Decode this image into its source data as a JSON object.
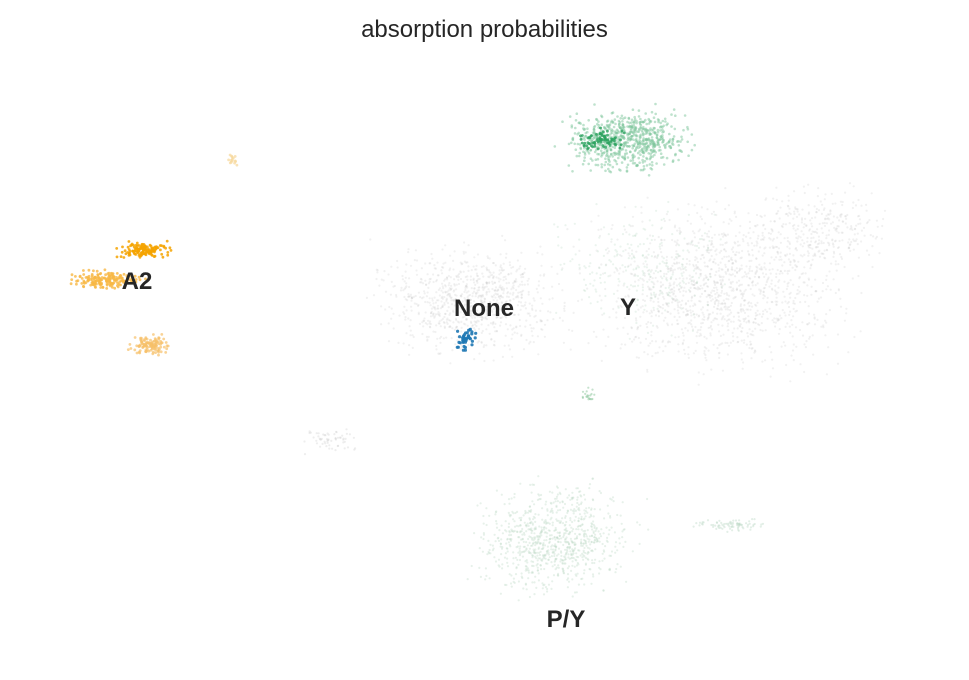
{
  "chart_data": {
    "type": "scatter",
    "title": "absorption probabilities",
    "xlabel": "",
    "ylabel": "",
    "grid": false,
    "axes_visible": false,
    "legend": "on data",
    "colors": {
      "background_cells": "#c8c8c8",
      "A2": "#f5a300",
      "None": "#1f78b4",
      "Y": "#2ca25f",
      "P/Y": "#b9d8c2"
    },
    "cluster_labels": [
      {
        "name": "A2"
      },
      {
        "name": "None"
      },
      {
        "name": "Y"
      },
      {
        "name": "P/Y"
      }
    ]
  }
}
